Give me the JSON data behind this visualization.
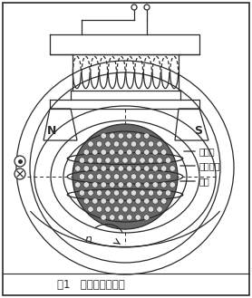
{
  "title": "图1   磁力研磨示意图",
  "label_cixian": "磁力线",
  "label_cixing": "磁性磨粒",
  "label_gongjian": "工件",
  "label_N": "N",
  "label_S": "S",
  "label_n": "n",
  "bg_color": "#ffffff",
  "line_color": "#2a2a2a",
  "fig_width": 2.78,
  "fig_height": 3.29,
  "dpi": 100
}
